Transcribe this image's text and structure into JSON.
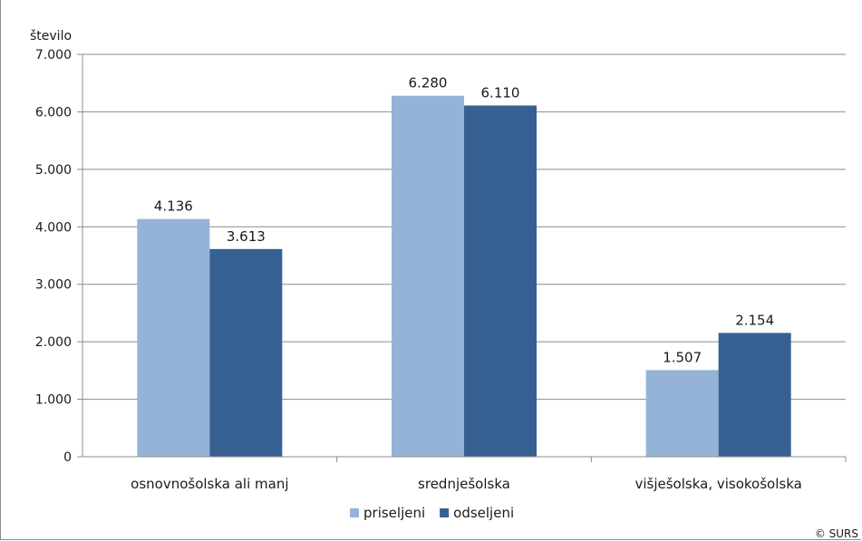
{
  "chart_data": {
    "type": "bar",
    "ylabel": "število",
    "categories": [
      "osnovnošolska ali manj",
      "srednješolska",
      "višješolska, visokošolska"
    ],
    "series": [
      {
        "name": "priseljeni",
        "values": [
          4136,
          6280,
          1507
        ],
        "labels": [
          "4.136",
          "6.280",
          "1.507"
        ],
        "color": "#95b3d7"
      },
      {
        "name": "odseljeni",
        "values": [
          3613,
          6110,
          2154
        ],
        "labels": [
          "3.613",
          "6.110",
          "2.154"
        ],
        "color": "#376092"
      }
    ],
    "ylim": [
      0,
      7000
    ],
    "yticks": [
      0,
      1000,
      2000,
      3000,
      4000,
      5000,
      6000,
      7000
    ],
    "ytick_labels": [
      "0",
      "1.000",
      "2.000",
      "3.000",
      "4.000",
      "5.000",
      "6.000",
      "7.000"
    ],
    "grid": true,
    "legend_position": "bottom",
    "source_note": "© SURS"
  }
}
